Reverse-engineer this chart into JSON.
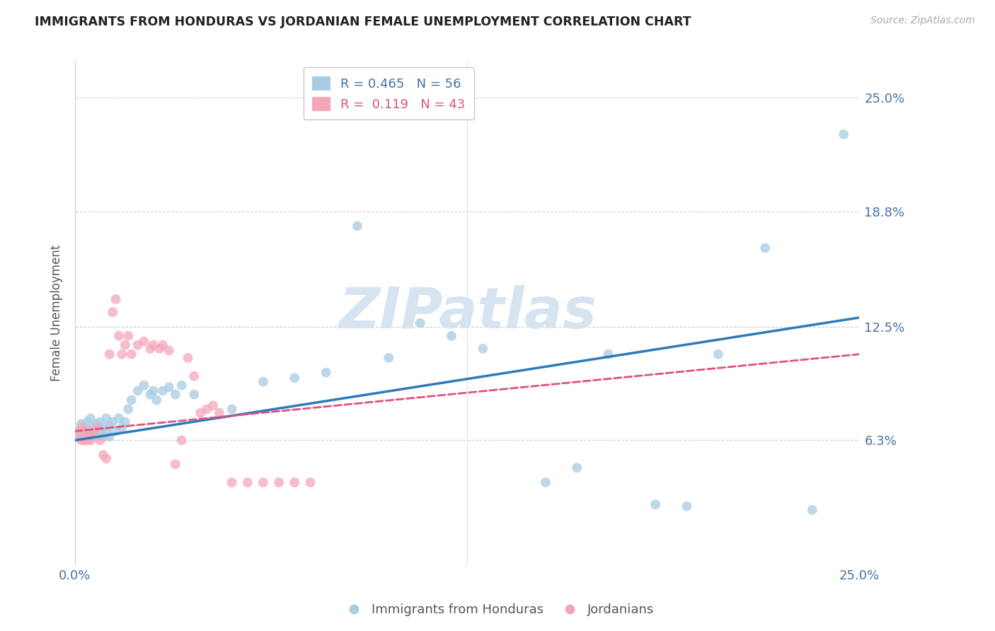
{
  "title": "IMMIGRANTS FROM HONDURAS VS JORDANIAN FEMALE UNEMPLOYMENT CORRELATION CHART",
  "source": "Source: ZipAtlas.com",
  "ylabel": "Female Unemployment",
  "xlabel": "",
  "xmin": 0.0,
  "xmax": 0.25,
  "ymin": -0.005,
  "ymax": 0.27,
  "yticks": [
    0.063,
    0.125,
    0.188,
    0.25
  ],
  "ytick_labels": [
    "6.3%",
    "12.5%",
    "18.8%",
    "25.0%"
  ],
  "xticks": [
    0.0,
    0.125,
    0.25
  ],
  "xtick_labels": [
    "0.0%",
    "",
    "25.0%"
  ],
  "blue_R": 0.465,
  "blue_N": 56,
  "pink_R": 0.119,
  "pink_N": 43,
  "blue_color": "#a8cce4",
  "pink_color": "#f4a7b9",
  "blue_line_color": "#2b7bba",
  "pink_line_color": "#e05080",
  "grid_color": "#cccccc",
  "title_color": "#222222",
  "tick_label_color": "#4472a8",
  "watermark_color": "#d5e4f0",
  "blue_scatter_x": [
    0.001,
    0.002,
    0.002,
    0.003,
    0.003,
    0.004,
    0.004,
    0.005,
    0.005,
    0.006,
    0.006,
    0.007,
    0.007,
    0.008,
    0.008,
    0.009,
    0.009,
    0.01,
    0.01,
    0.011,
    0.011,
    0.012,
    0.013,
    0.014,
    0.015,
    0.016,
    0.017,
    0.018,
    0.02,
    0.022,
    0.024,
    0.025,
    0.026,
    0.028,
    0.03,
    0.032,
    0.034,
    0.038,
    0.05,
    0.06,
    0.07,
    0.08,
    0.09,
    0.1,
    0.11,
    0.12,
    0.13,
    0.15,
    0.16,
    0.17,
    0.185,
    0.195,
    0.205,
    0.22,
    0.235,
    0.245
  ],
  "blue_scatter_y": [
    0.068,
    0.072,
    0.065,
    0.07,
    0.068,
    0.073,
    0.068,
    0.065,
    0.075,
    0.07,
    0.068,
    0.072,
    0.065,
    0.068,
    0.073,
    0.07,
    0.065,
    0.068,
    0.075,
    0.071,
    0.065,
    0.073,
    0.068,
    0.075,
    0.07,
    0.073,
    0.08,
    0.085,
    0.09,
    0.093,
    0.088,
    0.09,
    0.085,
    0.09,
    0.092,
    0.088,
    0.093,
    0.088,
    0.08,
    0.095,
    0.097,
    0.1,
    0.18,
    0.108,
    0.127,
    0.12,
    0.113,
    0.04,
    0.048,
    0.11,
    0.028,
    0.027,
    0.11,
    0.168,
    0.025,
    0.23
  ],
  "pink_scatter_x": [
    0.001,
    0.002,
    0.002,
    0.003,
    0.003,
    0.004,
    0.004,
    0.005,
    0.005,
    0.006,
    0.007,
    0.008,
    0.009,
    0.01,
    0.011,
    0.012,
    0.013,
    0.014,
    0.015,
    0.016,
    0.017,
    0.018,
    0.02,
    0.022,
    0.024,
    0.025,
    0.027,
    0.028,
    0.03,
    0.032,
    0.034,
    0.036,
    0.038,
    0.04,
    0.042,
    0.044,
    0.046,
    0.05,
    0.055,
    0.06,
    0.065,
    0.07,
    0.075
  ],
  "pink_scatter_y": [
    0.065,
    0.07,
    0.063,
    0.068,
    0.063,
    0.065,
    0.063,
    0.065,
    0.063,
    0.068,
    0.07,
    0.063,
    0.055,
    0.053,
    0.11,
    0.133,
    0.14,
    0.12,
    0.11,
    0.115,
    0.12,
    0.11,
    0.115,
    0.117,
    0.113,
    0.115,
    0.113,
    0.115,
    0.112,
    0.05,
    0.063,
    0.108,
    0.098,
    0.078,
    0.08,
    0.082,
    0.078,
    0.04,
    0.04,
    0.04,
    0.04,
    0.04,
    0.04
  ],
  "blue_trend_x0": 0.0,
  "blue_trend_y0": 0.063,
  "blue_trend_x1": 0.25,
  "blue_trend_y1": 0.13,
  "pink_trend_x0": 0.0,
  "pink_trend_y0": 0.068,
  "pink_trend_x1": 0.25,
  "pink_trend_y1": 0.11
}
